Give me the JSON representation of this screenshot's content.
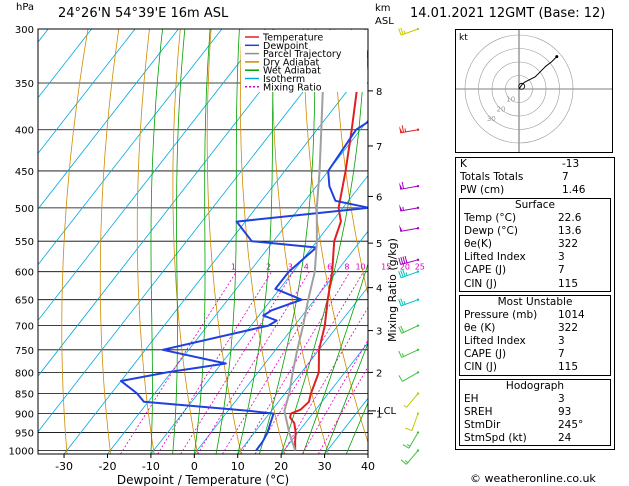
{
  "title": {
    "location": "24°26'N  54°39'E  16m  ASL",
    "datetime": "14.01.2021  12GMT  (Base: 12)",
    "hpa": "hPa",
    "km": "km",
    "asl": "ASL"
  },
  "chart_data": {
    "type": "line",
    "title": "Skew-T log-P diagram",
    "xlabel": "Dewpoint / Temperature (°C)",
    "ylabel": "Mixing Ratio (g/kg)",
    "x_ticks": [
      -30,
      -20,
      -10,
      0,
      10,
      20,
      30,
      40
    ],
    "xlim": [
      -36,
      40
    ],
    "pressure_levels": [
      300,
      350,
      400,
      450,
      500,
      550,
      600,
      650,
      700,
      750,
      800,
      850,
      900,
      950,
      1000
    ],
    "ylim": [
      1010,
      300
    ],
    "km_ticks": [
      {
        "km": "8",
        "p": 358
      },
      {
        "km": "7",
        "p": 419
      },
      {
        "km": "6",
        "p": 484
      },
      {
        "km": "5",
        "p": 553
      },
      {
        "km": "4",
        "p": 628
      },
      {
        "km": "3",
        "p": 710
      },
      {
        "km": "2",
        "p": 800
      },
      {
        "km": "1",
        "p": 900
      }
    ],
    "lcl_label": "LCL",
    "lcl_p": 893,
    "mixing_ratio_values": [
      1,
      2,
      3,
      4,
      6,
      8,
      10,
      15,
      20,
      25
    ],
    "legend": [
      {
        "name": "Temperature",
        "color": "#e02020"
      },
      {
        "name": "Dewpoint",
        "color": "#2040e0"
      },
      {
        "name": "Parcel Trajectory",
        "color": "#909090"
      },
      {
        "name": "Dry Adiabat",
        "color": "#d08a00"
      },
      {
        "name": "Wet Adiabat",
        "color": "#00a000"
      },
      {
        "name": "Isotherm",
        "color": "#00a8e0"
      },
      {
        "name": "Mixing Ratio",
        "color": "#e000c0"
      }
    ],
    "series": [
      {
        "name": "Temperature",
        "points": [
          [
            1000,
            22.6
          ],
          [
            975,
            21
          ],
          [
            950,
            19.5
          ],
          [
            925,
            17.5
          ],
          [
            910,
            15.5
          ],
          [
            900,
            15
          ],
          [
            890,
            16.5
          ],
          [
            870,
            17
          ],
          [
            850,
            16
          ],
          [
            800,
            14
          ],
          [
            750,
            10
          ],
          [
            700,
            7
          ],
          [
            650,
            3
          ],
          [
            600,
            -1
          ],
          [
            550,
            -6
          ],
          [
            520,
            -8
          ],
          [
            500,
            -11
          ],
          [
            450,
            -16
          ],
          [
            400,
            -22
          ],
          [
            350,
            -29
          ],
          [
            340,
            -31
          ],
          [
            330,
            -31
          ],
          [
            300,
            -35
          ]
        ]
      },
      {
        "name": "Dewpoint",
        "points": [
          [
            1000,
            13.6
          ],
          [
            975,
            13.5
          ],
          [
            950,
            13
          ],
          [
            925,
            12
          ],
          [
            900,
            11
          ],
          [
            893,
            5
          ],
          [
            870,
            -21
          ],
          [
            850,
            -24
          ],
          [
            820,
            -30
          ],
          [
            800,
            -21
          ],
          [
            780,
            -9
          ],
          [
            750,
            -26
          ],
          [
            700,
            -6
          ],
          [
            690,
            -5
          ],
          [
            680,
            -9
          ],
          [
            670,
            -8
          ],
          [
            650,
            -3
          ],
          [
            630,
            -11
          ],
          [
            600,
            -11
          ],
          [
            560,
            -9
          ],
          [
            550,
            -25
          ],
          [
            520,
            -32
          ],
          [
            500,
            -4
          ],
          [
            490,
            -13
          ],
          [
            470,
            -17
          ],
          [
            450,
            -20
          ],
          [
            400,
            -21
          ],
          [
            345,
            -12
          ],
          [
            330,
            -13
          ],
          [
            300,
            -16
          ]
        ]
      },
      {
        "name": "Parcel Trajectory",
        "points": [
          [
            1000,
            22.6
          ],
          [
            950,
            18
          ],
          [
            893,
            13
          ],
          [
            850,
            11
          ],
          [
            800,
            8
          ],
          [
            750,
            5
          ],
          [
            700,
            2
          ],
          [
            650,
            -1.5
          ],
          [
            600,
            -5
          ],
          [
            550,
            -10
          ],
          [
            500,
            -16
          ],
          [
            450,
            -22
          ],
          [
            400,
            -29
          ],
          [
            350,
            -37
          ],
          [
            300,
            -45
          ]
        ]
      }
    ]
  },
  "wind_barbs": {
    "levels": [
      {
        "p": 300,
        "dir": 250,
        "spd": 25,
        "color": "#c8c800"
      },
      {
        "p": 400,
        "dir": 260,
        "spd": 65,
        "color": "#e02020"
      },
      {
        "p": 470,
        "dir": 260,
        "spd": 60,
        "color": "#a000c0"
      },
      {
        "p": 500,
        "dir": 260,
        "spd": 55,
        "color": "#a000c0"
      },
      {
        "p": 530,
        "dir": 260,
        "spd": 50,
        "color": "#a000c0"
      },
      {
        "p": 580,
        "dir": 255,
        "spd": 40,
        "color": "#a000c0"
      },
      {
        "p": 600,
        "dir": 250,
        "spd": 35,
        "color": "#00c0c0"
      },
      {
        "p": 650,
        "dir": 250,
        "spd": 25,
        "color": "#00c0c0"
      },
      {
        "p": 700,
        "dir": 245,
        "spd": 20,
        "color": "#40c040"
      },
      {
        "p": 750,
        "dir": 245,
        "spd": 15,
        "color": "#40c040"
      },
      {
        "p": 800,
        "dir": 240,
        "spd": 10,
        "color": "#40c040"
      },
      {
        "p": 850,
        "dir": 220,
        "spd": 5,
        "color": "#c8c800"
      },
      {
        "p": 900,
        "dir": 200,
        "spd": 10,
        "color": "#c8c800"
      },
      {
        "p": 950,
        "dir": 210,
        "spd": 15,
        "color": "#40c040"
      },
      {
        "p": 1000,
        "dir": 220,
        "spd": 15,
        "color": "#40c040"
      }
    ]
  },
  "hodograph": {
    "label": "kt",
    "rings": [
      10,
      20,
      30,
      40
    ],
    "ring_labels": [
      "10",
      "20",
      "30"
    ],
    "trace_kt": [
      [
        0,
        0
      ],
      [
        2,
        3
      ],
      [
        4,
        5
      ],
      [
        8,
        7
      ],
      [
        12,
        9
      ],
      [
        15,
        12
      ],
      [
        20,
        17
      ],
      [
        24,
        20
      ],
      [
        28,
        24
      ]
    ],
    "storm_motion_kt": [
      2,
      2
    ]
  },
  "indices": {
    "k_label": "K",
    "k": "-13",
    "tt_label": "Totals Totals",
    "tt": "7",
    "pw_label": "PW (cm)",
    "pw": "1.46"
  },
  "surface": {
    "title": "Surface",
    "rows": [
      {
        "label": "Temp (°C)",
        "value": "22.6"
      },
      {
        "label": "Dewp (°C)",
        "value": "13.6"
      },
      {
        "label": "θe(K)",
        "value": "322"
      },
      {
        "label": "Lifted Index",
        "value": "3"
      },
      {
        "label": "CAPE (J)",
        "value": "7"
      },
      {
        "label": "CIN (J)",
        "value": "115"
      }
    ]
  },
  "most_unstable": {
    "title": "Most Unstable",
    "rows": [
      {
        "label": "Pressure (mb)",
        "value": "1014"
      },
      {
        "label": "θe (K)",
        "value": "322"
      },
      {
        "label": "Lifted Index",
        "value": "3"
      },
      {
        "label": "CAPE (J)",
        "value": "7"
      },
      {
        "label": "CIN (J)",
        "value": "115"
      }
    ]
  },
  "hodo_stats": {
    "title": "Hodograph",
    "rows": [
      {
        "label": "EH",
        "value": "3"
      },
      {
        "label": "SREH",
        "value": "93"
      },
      {
        "label": "StmDir",
        "value": "245°"
      },
      {
        "label": "StmSpd (kt)",
        "value": "24"
      }
    ]
  },
  "footer": "© weatheronline.co.uk"
}
